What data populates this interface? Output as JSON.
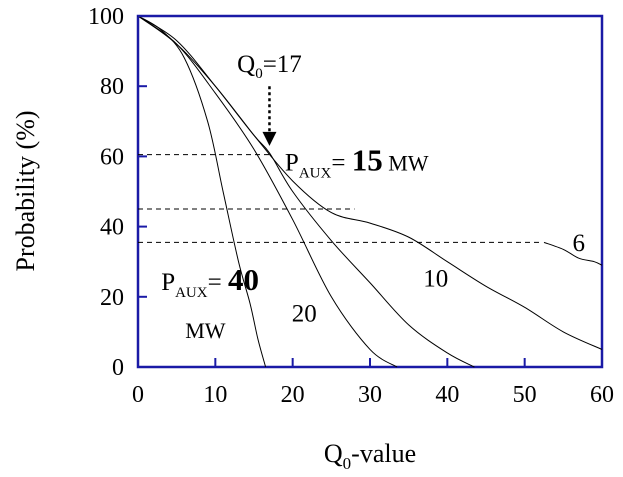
{
  "chart_data": {
    "type": "line",
    "title": "",
    "xlabel": "Q0-value",
    "xlabel_parts": {
      "main": "Q",
      "sub": "0",
      "rest": "-value"
    },
    "ylabel": "Probability (%)",
    "xlim": [
      0,
      60
    ],
    "ylim": [
      0,
      100
    ],
    "xticks": [
      "0",
      "10",
      "20",
      "30",
      "40",
      "50",
      "60"
    ],
    "yticks": [
      "0",
      "20",
      "40",
      "60",
      "80",
      "100"
    ],
    "grid": false,
    "frame_color": "#1a1aa6",
    "series": [
      {
        "id": "p40",
        "x": [
          0,
          3,
          6,
          9,
          11,
          13,
          14.5,
          15.5,
          16.5
        ],
        "y": [
          100,
          96,
          88,
          70,
          50,
          30,
          18,
          8,
          0
        ]
      },
      {
        "id": "p20",
        "x": [
          0,
          5,
          10,
          15,
          20,
          25,
          30,
          33.5
        ],
        "y": [
          100,
          92,
          78,
          62,
          42,
          20,
          5,
          0
        ]
      },
      {
        "id": "p15",
        "x": [
          0,
          5,
          10,
          15,
          17,
          20,
          25,
          30,
          35,
          40,
          43.5
        ],
        "y": [
          100,
          92,
          80,
          66,
          61,
          50,
          36,
          24,
          12,
          4,
          0
        ]
      },
      {
        "id": "p10",
        "x": [
          0,
          5,
          10,
          15,
          20,
          25,
          30,
          35,
          40,
          45,
          50,
          55,
          60
        ],
        "y": [
          100,
          93,
          80,
          66,
          53,
          44,
          41,
          37,
          30,
          23,
          17,
          10,
          5
        ]
      },
      {
        "id": "p6",
        "x": [
          52.5,
          55,
          57,
          59,
          60
        ],
        "y": [
          35.5,
          33.5,
          31,
          30,
          29
        ]
      }
    ],
    "reference_lines": [
      {
        "y": 60.5,
        "x_from": 0,
        "x_to": 17
      },
      {
        "y": 45,
        "x_from": 0,
        "x_to": 28
      },
      {
        "y": 35.5,
        "x_from": 0,
        "x_to": 52
      }
    ],
    "annotations": {
      "q0": {
        "main": "Q",
        "sub": "0",
        "rest": "=17",
        "x": 17,
        "y": 84
      },
      "arrow": {
        "x": 17,
        "y_from": 80,
        "y_to": 63
      },
      "paux15": {
        "main": "P",
        "sub": "AUX",
        "eq": "= ",
        "value": "15",
        "unit": " MW",
        "x": 19,
        "y": 56
      },
      "paux40": {
        "main": "P",
        "sub": "AUX",
        "eq": "= ",
        "value": "40",
        "unit": "MW",
        "x": 3,
        "y": 22
      },
      "label20": {
        "text": "20",
        "x": 21.5,
        "y": 13
      },
      "label10": {
        "text": "10",
        "x": 38.5,
        "y": 23
      },
      "label6": {
        "text": "6",
        "x": 57,
        "y": 33
      }
    }
  }
}
